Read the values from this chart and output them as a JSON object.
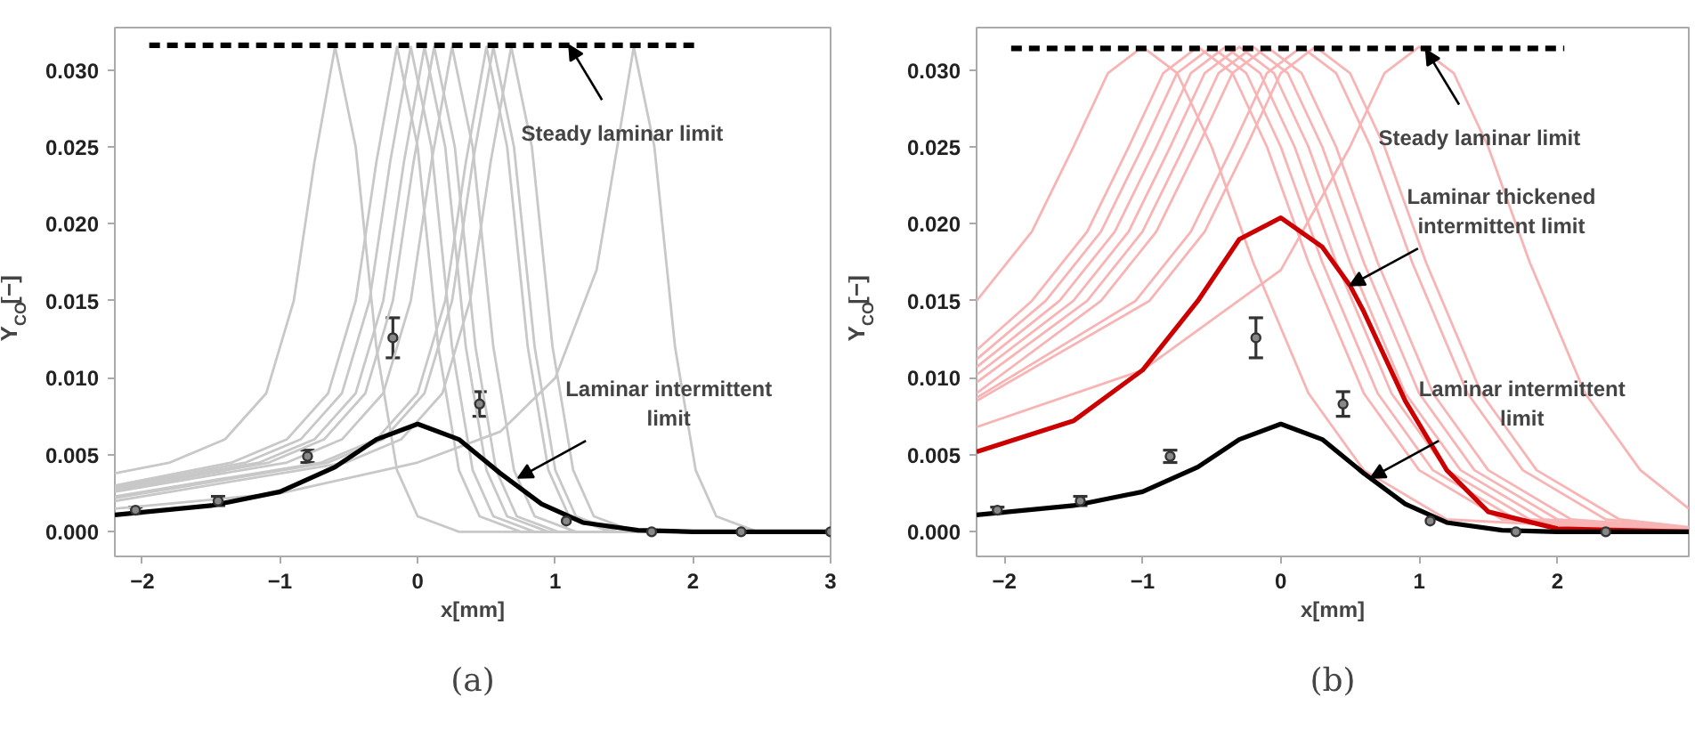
{
  "chart_data": [
    {
      "type": "line",
      "xlabel": "x[mm]",
      "ylabel": "Y$_{CO}$[−]",
      "xlim": [
        -2.2,
        3
      ],
      "ylim": [
        -0.0016,
        0.03275
      ],
      "xticks": [
        -2,
        -1,
        0,
        1,
        2,
        3
      ],
      "yticks": [
        {
          "value": 0,
          "label": "0.000"
        },
        {
          "value": 0.005,
          "label": "0.005"
        },
        {
          "value": 0.01,
          "label": "0.010"
        },
        {
          "value": 0.015,
          "label": "0.015"
        },
        {
          "value": 0.02,
          "label": "0.020"
        },
        {
          "value": 0.025,
          "label": "0.025"
        },
        {
          "value": 0.03,
          "label": "0.030"
        }
      ],
      "grid": false,
      "series": [
        {
          "type": "line",
          "color": "#c8c8c8",
          "x": [
            -2.2,
            -1.8,
            -1.4,
            -1.1,
            -0.9,
            -0.75,
            -0.6,
            -0.45,
            -0.3,
            -0.15,
            0,
            0.3,
            3
          ],
          "values": [
            0.0038,
            0.0045,
            0.006,
            0.009,
            0.015,
            0.024,
            0.0315,
            0.025,
            0.012,
            0.004,
            0.001,
            0,
            0
          ]
        },
        {
          "type": "line",
          "color": "#c8c8c8",
          "x": [
            -2.2,
            -1.35,
            -0.95,
            -0.65,
            -0.45,
            -0.3,
            -0.15,
            0,
            0.15,
            0.3,
            0.45,
            0.75,
            3
          ],
          "values": [
            0.003,
            0.0045,
            0.006,
            0.009,
            0.015,
            0.024,
            0.0315,
            0.025,
            0.012,
            0.004,
            0.001,
            0,
            0
          ]
        },
        {
          "type": "line",
          "color": "#c8c8c8",
          "x": [
            -2.2,
            -1.25,
            -0.85,
            -0.55,
            -0.35,
            -0.2,
            -0.05,
            0.1,
            0.25,
            0.4,
            0.55,
            0.85,
            3
          ],
          "values": [
            0.0029,
            0.0045,
            0.006,
            0.009,
            0.015,
            0.024,
            0.0315,
            0.025,
            0.012,
            0.004,
            0.001,
            0,
            0
          ]
        },
        {
          "type": "line",
          "color": "#c8c8c8",
          "x": [
            -2.2,
            -1.15,
            -0.75,
            -0.45,
            -0.25,
            -0.1,
            0.05,
            0.2,
            0.35,
            0.5,
            0.65,
            0.95,
            3
          ],
          "values": [
            0.0028,
            0.0045,
            0.006,
            0.009,
            0.015,
            0.024,
            0.0315,
            0.025,
            0.012,
            0.004,
            0.001,
            0,
            0
          ]
        },
        {
          "type": "line",
          "color": "#c8c8c8",
          "x": [
            -2.2,
            -1.08,
            -0.68,
            -0.38,
            -0.18,
            -0.03,
            0.12,
            0.27,
            0.42,
            0.57,
            0.72,
            1.02,
            3
          ],
          "values": [
            0.0027,
            0.0045,
            0.006,
            0.009,
            0.015,
            0.024,
            0.0315,
            0.025,
            0.012,
            0.004,
            0.001,
            0,
            0
          ]
        },
        {
          "type": "line",
          "color": "#c8c8c8",
          "x": [
            -2.2,
            -0.95,
            -0.55,
            -0.25,
            -0.05,
            0.1,
            0.25,
            0.4,
            0.55,
            0.7,
            0.85,
            1.15,
            3
          ],
          "values": [
            0.0026,
            0.0045,
            0.006,
            0.009,
            0.015,
            0.024,
            0.0315,
            0.025,
            0.012,
            0.004,
            0.001,
            0,
            0
          ]
        },
        {
          "type": "line",
          "color": "#c8c8c8",
          "x": [
            -2.2,
            -0.7,
            -0.3,
            0,
            0.2,
            0.35,
            0.5,
            0.65,
            0.8,
            0.95,
            1.1,
            1.4,
            3
          ],
          "values": [
            0.0023,
            0.0045,
            0.006,
            0.009,
            0.015,
            0.024,
            0.0315,
            0.025,
            0.012,
            0.004,
            0.001,
            0,
            0
          ]
        },
        {
          "type": "line",
          "color": "#c8c8c8",
          "x": [
            -2.2,
            -0.65,
            -0.25,
            0.05,
            0.25,
            0.4,
            0.55,
            0.7,
            0.85,
            1,
            1.15,
            1.45,
            3
          ],
          "values": [
            0.0022,
            0.0045,
            0.006,
            0.009,
            0.015,
            0.024,
            0.0315,
            0.025,
            0.012,
            0.004,
            0.001,
            0,
            0
          ]
        },
        {
          "type": "line",
          "color": "#c8c8c8",
          "x": [
            -2.2,
            -0.52,
            -0.12,
            0.18,
            0.38,
            0.53,
            0.68,
            0.83,
            0.98,
            1.13,
            1.28,
            1.58,
            3
          ],
          "values": [
            0.002,
            0.0045,
            0.006,
            0.009,
            0.015,
            0.024,
            0.0315,
            0.025,
            0.012,
            0.004,
            0.001,
            0,
            0
          ]
        },
        {
          "type": "line",
          "color": "#c8c8c8",
          "x": [
            -2.2,
            -1,
            0,
            0.6,
            1,
            1.3,
            1.45,
            1.57,
            1.72,
            1.87,
            2.02,
            2.17,
            2.47,
            3
          ],
          "values": [
            0.0015,
            0.0025,
            0.0045,
            0.0065,
            0.01,
            0.017,
            0.025,
            0.0315,
            0.025,
            0.012,
            0.004,
            0.001,
            0,
            0
          ]
        },
        {
          "type": "line",
          "color": "#000000",
          "x": [
            -2.2,
            -1.5,
            -1,
            -0.6,
            -0.3,
            0,
            0.3,
            0.6,
            0.9,
            1.2,
            1.6,
            2,
            3
          ],
          "values": [
            0.0011,
            0.0017,
            0.0026,
            0.0042,
            0.006,
            0.007,
            0.006,
            0.0038,
            0.0018,
            0.0006,
            0.0001,
            0,
            0
          ]
        },
        {
          "type": "line",
          "color": "#000000",
          "line_style": "dashed",
          "x": [
            -1.95,
            2.05
          ],
          "values": [
            0.0316,
            0.0316
          ]
        },
        {
          "type": "scatter",
          "marker": "circle",
          "color": "#333333",
          "x": [
            -2.05,
            -1.45,
            -0.8,
            -0.18,
            0.45,
            1.08,
            1.7,
            2.35,
            3
          ],
          "values": [
            0.0014,
            0.002,
            0.0049,
            0.0126,
            0.0083,
            0.0007,
            0,
            0,
            0
          ],
          "errors": [
            0.0002,
            0.0003,
            0.0004,
            0.0013,
            0.0008,
            null,
            null,
            null,
            null
          ]
        }
      ],
      "annotations": [
        {
          "text": "Steady laminar limit",
          "x": 1.1,
          "y": 0.0316
        },
        {
          "text": "Laminar intermittent\nlimit",
          "x": 0.73,
          "y": 0.0035
        },
        "(a)"
      ]
    },
    {
      "type": "line",
      "xlabel": "x[mm]",
      "ylabel": "Y$_{CO}$[−]",
      "xlim": [
        -2.2,
        2.95
      ],
      "ylim": [
        -0.0016,
        0.03275
      ],
      "xticks": [
        -2,
        -1,
        0,
        1,
        2
      ],
      "yticks": [
        {
          "value": 0,
          "label": "0.000"
        },
        {
          "value": 0.005,
          "label": "0.005"
        },
        {
          "value": 0.01,
          "label": "0.010"
        },
        {
          "value": 0.015,
          "label": "0.015"
        },
        {
          "value": 0.02,
          "label": "0.020"
        },
        {
          "value": 0.025,
          "label": "0.025"
        },
        {
          "value": 0.03,
          "label": "0.030"
        }
      ],
      "grid": false,
      "series": [
        {
          "type": "line",
          "color": "#f8b4b4",
          "x": [
            -2.2,
            -1.8,
            -1.5,
            -1.25,
            -1,
            -0.75,
            -0.5,
            -0.2,
            0.2,
            0.6,
            1.2,
            2.95
          ],
          "values": [
            0.015,
            0.0195,
            0.025,
            0.0298,
            0.0315,
            0.0298,
            0.025,
            0.0175,
            0.009,
            0.004,
            0.0008,
            0
          ]
        },
        {
          "type": "line",
          "color": "#f8b4b4",
          "x": [
            -2.2,
            -1.8,
            -1.4,
            -1.1,
            -0.85,
            -0.6,
            -0.35,
            -0.1,
            0.2,
            0.6,
            1,
            1.6,
            2.95
          ],
          "values": [
            0.0118,
            0.015,
            0.0195,
            0.025,
            0.0298,
            0.0315,
            0.0298,
            0.025,
            0.0175,
            0.009,
            0.004,
            0.0008,
            0
          ]
        },
        {
          "type": "line",
          "color": "#f8b4b4",
          "x": [
            -2.2,
            -1.7,
            -1.3,
            -1,
            -0.75,
            -0.5,
            -0.25,
            0,
            0.3,
            0.7,
            1.1,
            1.7,
            2.95
          ],
          "values": [
            0.0112,
            0.015,
            0.0195,
            0.025,
            0.0298,
            0.0315,
            0.0298,
            0.025,
            0.0175,
            0.009,
            0.004,
            0.0008,
            0
          ]
        },
        {
          "type": "line",
          "color": "#f8b4b4",
          "x": [
            -2.2,
            -1.6,
            -1.2,
            -0.9,
            -0.65,
            -0.4,
            -0.15,
            0.1,
            0.4,
            0.8,
            1.2,
            1.8,
            2.95
          ],
          "values": [
            0.0107,
            0.015,
            0.0195,
            0.025,
            0.0298,
            0.0315,
            0.0298,
            0.025,
            0.0175,
            0.009,
            0.004,
            0.0008,
            0.0001
          ]
        },
        {
          "type": "line",
          "color": "#f8b4b4",
          "x": [
            -2.2,
            -1.5,
            -1.1,
            -0.8,
            -0.55,
            -0.3,
            -0.05,
            0.2,
            0.5,
            0.9,
            1.3,
            1.9,
            2.95
          ],
          "values": [
            0.0102,
            0.015,
            0.0195,
            0.025,
            0.0298,
            0.0315,
            0.0298,
            0.025,
            0.0175,
            0.009,
            0.004,
            0.0008,
            0.0001
          ]
        },
        {
          "type": "line",
          "color": "#f8b4b4",
          "x": [
            -2.2,
            -1.4,
            -1,
            -0.7,
            -0.45,
            -0.2,
            0.05,
            0.3,
            0.6,
            1,
            1.4,
            2,
            2.95
          ],
          "values": [
            0.0097,
            0.015,
            0.0195,
            0.025,
            0.0298,
            0.0315,
            0.0298,
            0.025,
            0.0175,
            0.009,
            0.004,
            0.0008,
            0.0001
          ]
        },
        {
          "type": "line",
          "color": "#f8b4b4",
          "x": [
            -2.2,
            -1.3,
            -0.9,
            -0.6,
            -0.35,
            -0.1,
            0.15,
            0.4,
            0.7,
            1.1,
            1.5,
            2.1,
            2.95
          ],
          "values": [
            0.009,
            0.015,
            0.0195,
            0.025,
            0.0298,
            0.0315,
            0.0298,
            0.025,
            0.0175,
            0.009,
            0.004,
            0.0008,
            0.0002
          ]
        },
        {
          "type": "line",
          "color": "#f8b4b4",
          "x": [
            -2.2,
            -1.05,
            -0.65,
            -0.35,
            -0.1,
            0.15,
            0.4,
            0.65,
            0.95,
            1.35,
            1.75,
            2.35,
            2.95
          ],
          "values": [
            0.0087,
            0.015,
            0.0195,
            0.025,
            0.0298,
            0.0315,
            0.0298,
            0.025,
            0.0175,
            0.009,
            0.004,
            0.0008,
            0.0002
          ]
        },
        {
          "type": "line",
          "color": "#f8b4b4",
          "x": [
            -2.2,
            -0.95,
            -0.55,
            -0.25,
            0,
            0.25,
            0.5,
            0.75,
            1.05,
            1.45,
            1.85,
            2.45,
            2.95
          ],
          "values": [
            0.0085,
            0.015,
            0.0195,
            0.025,
            0.0298,
            0.0315,
            0.0298,
            0.025,
            0.0175,
            0.009,
            0.004,
            0.0008,
            0.0003
          ]
        },
        {
          "type": "line",
          "color": "#f8b4b4",
          "x": [
            -2.2,
            -1,
            0,
            0.5,
            0.75,
            1,
            1.25,
            1.5,
            1.8,
            2.2,
            2.6,
            2.95
          ],
          "values": [
            0.0068,
            0.0105,
            0.017,
            0.025,
            0.0298,
            0.0315,
            0.0298,
            0.025,
            0.0175,
            0.009,
            0.004,
            0.0015
          ]
        },
        {
          "type": "line",
          "color": "#cc0000",
          "x": [
            -2.2,
            -1.5,
            -1,
            -0.6,
            -0.3,
            0,
            0.3,
            0.5,
            0.6,
            0.9,
            1.2,
            1.5,
            2,
            2.95
          ],
          "values": [
            0.0052,
            0.0072,
            0.0105,
            0.015,
            0.019,
            0.0204,
            0.0185,
            0.016,
            0.0143,
            0.0085,
            0.004,
            0.0013,
            0.0002,
            0
          ]
        },
        {
          "type": "line",
          "color": "#000000",
          "x": [
            -2.2,
            -1.5,
            -1,
            -0.6,
            -0.3,
            0,
            0.3,
            0.6,
            0.9,
            1.2,
            1.6,
            2,
            2.95
          ],
          "values": [
            0.0011,
            0.0017,
            0.0026,
            0.0042,
            0.006,
            0.007,
            0.006,
            0.0038,
            0.0018,
            0.0006,
            0.0001,
            0,
            0
          ]
        },
        {
          "type": "line",
          "color": "#000000",
          "line_style": "dashed",
          "x": [
            -1.95,
            2.05
          ],
          "values": [
            0.0314,
            0.0314
          ]
        },
        {
          "type": "scatter",
          "marker": "circle",
          "color": "#333333",
          "x": [
            -2.05,
            -1.45,
            -0.8,
            -0.18,
            0.45,
            1.08,
            1.7,
            2.35
          ],
          "values": [
            0.0014,
            0.002,
            0.0049,
            0.0126,
            0.0083,
            0.0007,
            0,
            0
          ],
          "errors": [
            0.0002,
            0.0003,
            0.0004,
            0.0013,
            0.0008,
            null,
            null,
            null
          ]
        }
      ],
      "annotations": [
        {
          "text": "Steady laminar limit",
          "x": 1.05,
          "y": 0.0313
        },
        {
          "text": "Laminar thickened\nintermittent limit",
          "x": 0.5,
          "y": 0.016
        },
        {
          "text": "Laminar intermittent\nlimit",
          "x": 0.65,
          "y": 0.0035
        },
        "(b)"
      ]
    }
  ]
}
